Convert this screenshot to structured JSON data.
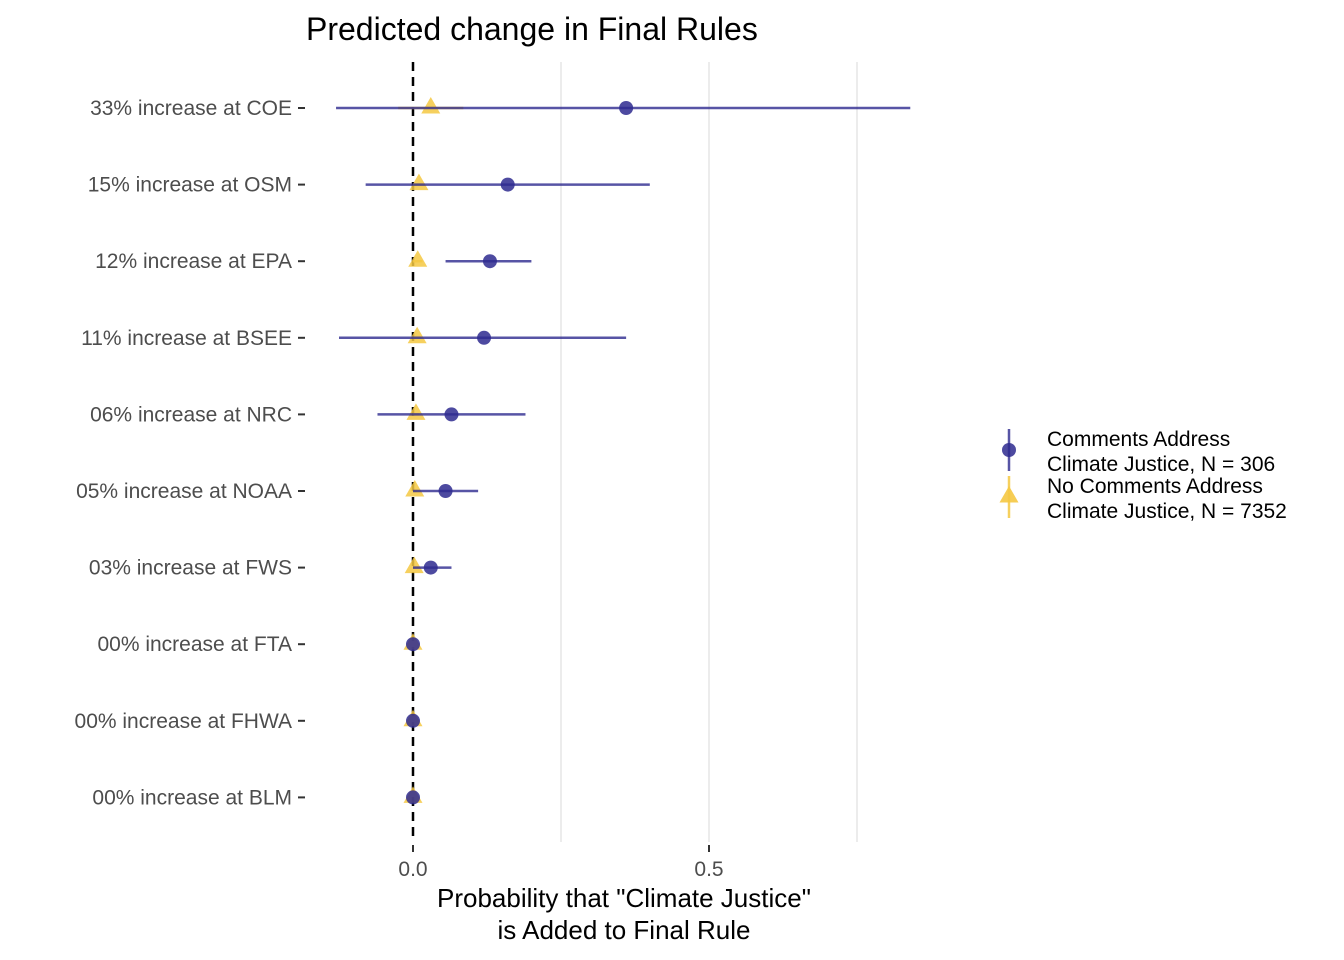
{
  "chart_data": {
    "type": "scatter",
    "title": "Predicted change in Final Rules",
    "xlabel": [
      "Probability that \"Climate Justice\"",
      "is Added to Final Rule"
    ],
    "ylabel": "",
    "xlim": [
      -0.15,
      0.92
    ],
    "x_ticks": [
      0.0,
      0.5
    ],
    "x_tick_labels": [
      "0.0",
      "0.5"
    ],
    "reference_line": {
      "x": 0,
      "style": "dashed",
      "color": "#000000"
    },
    "grid": "vertical major and minor gridlines",
    "legend_position": "right",
    "categories": [
      "33% increase at COE",
      "15% increase at OSM",
      "12% increase at EPA",
      "11% increase at BSEE",
      "06% increase at NRC",
      "05% increase at NOAA",
      "03% increase at FWS",
      "00% increase at FTA",
      "00% increase at FHWA",
      "00% increase at BLM"
    ],
    "series": [
      {
        "name": [
          "Comments Address",
          "Climate Justice, N = 306"
        ],
        "marker": "circle",
        "color": "#2e2a8f",
        "values": [
          0.36,
          0.16,
          0.13,
          0.12,
          0.065,
          0.055,
          0.03,
          0.0,
          0.0,
          0.0
        ],
        "lower": [
          -0.13,
          -0.08,
          0.055,
          -0.125,
          -0.06,
          0.0,
          0.0,
          0.0,
          0.0,
          0.0
        ],
        "upper": [
          0.84,
          0.4,
          0.2,
          0.36,
          0.19,
          0.11,
          0.065,
          0.0,
          0.0,
          0.0
        ]
      },
      {
        "name": [
          "No Comments Address",
          "Climate Justice, N = 7352"
        ],
        "marker": "triangle",
        "color": "#f5c842",
        "values": [
          0.03,
          0.01,
          0.008,
          0.007,
          0.005,
          0.003,
          0.002,
          0.0,
          0.0,
          0.0
        ],
        "lower": [
          -0.025,
          0.0,
          0.0,
          0.0,
          0.0,
          0.0,
          0.0,
          0.0,
          0.0,
          0.0
        ],
        "upper": [
          0.085,
          0.02,
          0.016,
          0.014,
          0.01,
          0.006,
          0.004,
          0.0,
          0.0,
          0.0
        ]
      }
    ]
  }
}
